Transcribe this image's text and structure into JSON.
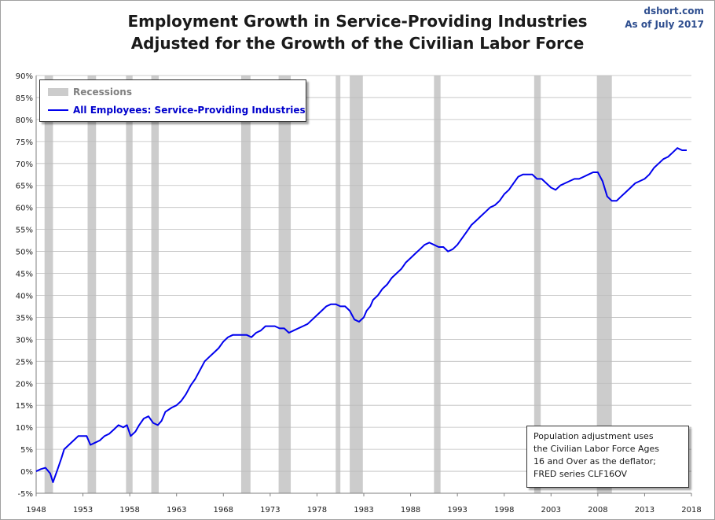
{
  "header": {
    "title_line1": "Employment Growth in Service-Providing Industries",
    "title_line2": "Adjusted for the Growth of the Civilian Labor Force",
    "source": "dshort.com",
    "as_of": "As of July 2017"
  },
  "legend": {
    "recessions_label": "Recessions",
    "series_label": "All Employees: Service-Providing Industries"
  },
  "note": {
    "line1": "Population adjustment uses",
    "line2": "the Civilian Labor Force Ages",
    "line3": "16 and Over as the deflator;",
    "line4": "FRED series  CLF16OV"
  },
  "colors": {
    "series": "#0000ee",
    "recession_band": "#cccccc",
    "gridline": "#bdbdbd"
  },
  "chart_data": {
    "type": "line",
    "title": "Employment Growth in Service-Providing Industries Adjusted for the Growth of the Civilian Labor Force",
    "xlabel": "",
    "ylabel": "",
    "xlim": [
      1948,
      2018
    ],
    "ylim": [
      -5,
      90
    ],
    "grid": "horizontal",
    "legend_position": "top-left",
    "x_ticks": [
      1948,
      1953,
      1958,
      1963,
      1968,
      1973,
      1978,
      1983,
      1988,
      1993,
      1998,
      2003,
      2008,
      2013,
      2018
    ],
    "y_ticks": [
      -5,
      0,
      5,
      10,
      15,
      20,
      25,
      30,
      35,
      40,
      45,
      50,
      55,
      60,
      65,
      70,
      75,
      80,
      85,
      90
    ],
    "y_tick_labels": [
      "-5%",
      "0%",
      "5%",
      "10%",
      "15%",
      "20%",
      "25%",
      "30%",
      "35%",
      "40%",
      "45%",
      "50%",
      "55%",
      "60%",
      "65%",
      "70%",
      "75%",
      "80%",
      "85%",
      "90%"
    ],
    "recessions": [
      [
        1948.9,
        1949.8
      ],
      [
        1953.5,
        1954.4
      ],
      [
        1957.6,
        1958.3
      ],
      [
        1960.3,
        1961.1
      ],
      [
        1969.9,
        1970.9
      ],
      [
        1973.9,
        1975.2
      ],
      [
        1980.0,
        1980.5
      ],
      [
        1981.5,
        1982.9
      ],
      [
        1990.5,
        1991.2
      ],
      [
        2001.2,
        2001.9
      ],
      [
        2007.9,
        2009.5
      ]
    ],
    "series": [
      {
        "name": "All Employees: Service-Providing Industries",
        "x": [
          1948.0,
          1948.5,
          1949.0,
          1949.5,
          1949.8,
          1950.3,
          1950.7,
          1951.0,
          1951.5,
          1952.0,
          1952.5,
          1953.0,
          1953.4,
          1953.8,
          1954.3,
          1954.8,
          1955.3,
          1955.8,
          1956.3,
          1956.8,
          1957.3,
          1957.7,
          1958.1,
          1958.6,
          1959.0,
          1959.5,
          1960.0,
          1960.5,
          1961.0,
          1961.4,
          1961.8,
          1962.5,
          1963.0,
          1963.5,
          1964.0,
          1964.5,
          1965.0,
          1965.5,
          1966.0,
          1966.5,
          1967.0,
          1967.5,
          1968.0,
          1968.5,
          1969.0,
          1969.5,
          1970.0,
          1970.5,
          1971.0,
          1971.5,
          1972.0,
          1972.5,
          1973.0,
          1973.5,
          1974.0,
          1974.5,
          1975.0,
          1975.5,
          1976.0,
          1976.5,
          1977.0,
          1977.5,
          1978.0,
          1978.5,
          1979.0,
          1979.5,
          1980.0,
          1980.5,
          1981.0,
          1981.5,
          1982.0,
          1982.5,
          1983.0,
          1983.3,
          1983.7,
          1984.0,
          1984.5,
          1985.0,
          1985.5,
          1986.0,
          1986.5,
          1987.0,
          1987.5,
          1988.0,
          1988.5,
          1989.0,
          1989.5,
          1990.0,
          1990.5,
          1991.0,
          1991.5,
          1992.0,
          1992.5,
          1993.0,
          1993.5,
          1994.0,
          1994.5,
          1995.0,
          1995.5,
          1996.0,
          1996.5,
          1997.0,
          1997.5,
          1998.0,
          1998.5,
          1999.0,
          1999.5,
          2000.0,
          2000.5,
          2001.0,
          2001.5,
          2002.0,
          2002.5,
          2003.0,
          2003.5,
          2004.0,
          2004.5,
          2005.0,
          2005.5,
          2006.0,
          2006.5,
          2007.0,
          2007.5,
          2008.0,
          2008.5,
          2009.0,
          2009.5,
          2010.0,
          2010.5,
          2011.0,
          2011.5,
          2012.0,
          2012.5,
          2013.0,
          2013.5,
          2014.0,
          2014.5,
          2015.0,
          2015.5,
          2016.0,
          2016.5,
          2017.0,
          2017.5
        ],
        "values": [
          0.0,
          0.5,
          0.8,
          -0.5,
          -2.5,
          0.5,
          3.0,
          5.0,
          6.0,
          7.0,
          8.0,
          8.0,
          8.0,
          6.0,
          6.5,
          7.0,
          8.0,
          8.5,
          9.5,
          10.5,
          10.0,
          10.5,
          8.0,
          9.0,
          10.5,
          12.0,
          12.5,
          11.0,
          10.5,
          11.5,
          13.5,
          14.5,
          15.0,
          16.0,
          17.5,
          19.5,
          21.0,
          23.0,
          25.0,
          26.0,
          27.0,
          28.0,
          29.5,
          30.5,
          31.0,
          31.0,
          31.0,
          31.0,
          30.5,
          31.5,
          32.0,
          33.0,
          33.0,
          33.0,
          32.5,
          32.5,
          31.5,
          32.0,
          32.5,
          33.0,
          33.5,
          34.5,
          35.5,
          36.5,
          37.5,
          38.0,
          38.0,
          37.5,
          37.5,
          36.5,
          34.5,
          34.0,
          35.0,
          36.5,
          37.5,
          39.0,
          40.0,
          41.5,
          42.5,
          44.0,
          45.0,
          46.0,
          47.5,
          48.5,
          49.5,
          50.5,
          51.5,
          52.0,
          51.5,
          51.0,
          51.0,
          50.0,
          50.5,
          51.5,
          53.0,
          54.5,
          56.0,
          57.0,
          58.0,
          59.0,
          60.0,
          60.5,
          61.5,
          63.0,
          64.0,
          65.5,
          67.0,
          67.5,
          67.5,
          67.5,
          66.5,
          66.5,
          65.5,
          64.5,
          64.0,
          65.0,
          65.5,
          66.0,
          66.5,
          66.5,
          67.0,
          67.5,
          68.0,
          68.0,
          66.0,
          62.5,
          61.5,
          61.5,
          62.5,
          63.5,
          64.5,
          65.5,
          66.0,
          66.5,
          67.5,
          69.0,
          70.0,
          71.0,
          71.5,
          72.5,
          73.5,
          73.0,
          73.0
        ]
      }
    ]
  }
}
